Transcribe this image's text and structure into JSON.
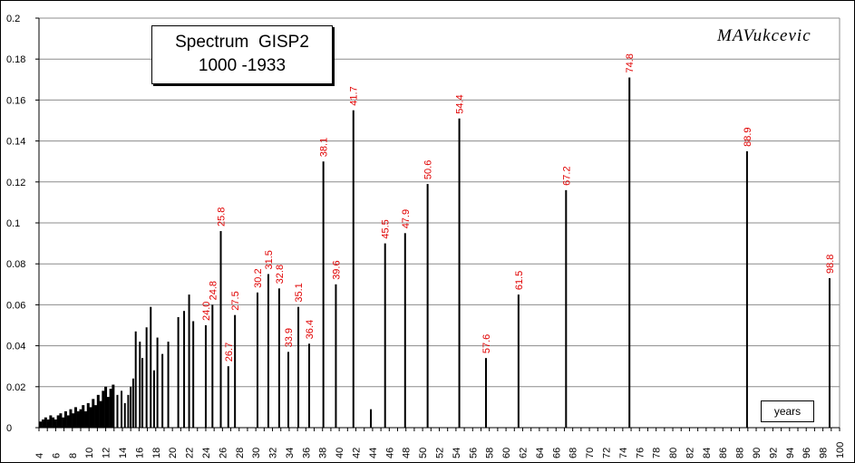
{
  "title_line1": "Spectrum  GISP2",
  "title_line2": "1000 -1933",
  "author": "MAVukcevic",
  "x_legend": "years",
  "chart_data": {
    "type": "bar",
    "xlabel": "years",
    "ylabel": "",
    "xlim": [
      4,
      100
    ],
    "ylim": [
      0,
      0.2
    ],
    "y_ticks": [
      "0",
      "0.02",
      "0.04",
      "0.06",
      "0.08",
      "0.1",
      "0.12",
      "0.14",
      "0.16",
      "0.18",
      "0.2"
    ],
    "x_ticks": [
      "4",
      "6",
      "8",
      "10",
      "12",
      "14",
      "16",
      "18",
      "20",
      "22",
      "24",
      "26",
      "28",
      "30",
      "32",
      "34",
      "36",
      "38",
      "40",
      "42",
      "44",
      "46",
      "48",
      "50",
      "52",
      "54",
      "56",
      "58",
      "60",
      "62",
      "64",
      "66",
      "68",
      "70",
      "72",
      "74",
      "76",
      "78",
      "80",
      "82",
      "84",
      "86",
      "88",
      "90",
      "92",
      "94",
      "96",
      "98",
      "100"
    ],
    "grid": "horizontal",
    "labeled_peaks": [
      {
        "x": 24.0,
        "y": 0.05,
        "label": "24.0"
      },
      {
        "x": 24.8,
        "y": 0.06,
        "label": "24.8"
      },
      {
        "x": 25.8,
        "y": 0.096,
        "label": "25.8"
      },
      {
        "x": 26.7,
        "y": 0.03,
        "label": "26.7"
      },
      {
        "x": 27.5,
        "y": 0.055,
        "label": "27.5"
      },
      {
        "x": 30.2,
        "y": 0.066,
        "label": "30.2"
      },
      {
        "x": 31.5,
        "y": 0.075,
        "label": "31.5"
      },
      {
        "x": 32.8,
        "y": 0.068,
        "label": "32.8"
      },
      {
        "x": 33.9,
        "y": 0.037,
        "label": "33.9"
      },
      {
        "x": 35.1,
        "y": 0.059,
        "label": "35.1"
      },
      {
        "x": 36.4,
        "y": 0.041,
        "label": "36.4"
      },
      {
        "x": 38.1,
        "y": 0.13,
        "label": "38.1"
      },
      {
        "x": 39.6,
        "y": 0.07,
        "label": "39.6"
      },
      {
        "x": 41.7,
        "y": 0.155,
        "label": "41.7"
      },
      {
        "x": 45.5,
        "y": 0.09,
        "label": "45.5"
      },
      {
        "x": 47.9,
        "y": 0.095,
        "label": "47.9"
      },
      {
        "x": 50.6,
        "y": 0.119,
        "label": "50.6"
      },
      {
        "x": 54.4,
        "y": 0.151,
        "label": "54.4"
      },
      {
        "x": 57.6,
        "y": 0.034,
        "label": "57.6"
      },
      {
        "x": 61.5,
        "y": 0.065,
        "label": "61.5"
      },
      {
        "x": 67.2,
        "y": 0.116,
        "label": "67.2"
      },
      {
        "x": 74.8,
        "y": 0.171,
        "label": "74.8"
      },
      {
        "x": 88.9,
        "y": 0.135,
        "label": "88.9"
      },
      {
        "x": 98.8,
        "y": 0.073,
        "label": "98.8"
      }
    ],
    "unlabeled_peaks": [
      {
        "x": 13.4,
        "y": 0.016
      },
      {
        "x": 13.9,
        "y": 0.018
      },
      {
        "x": 14.3,
        "y": 0.012
      },
      {
        "x": 14.7,
        "y": 0.016
      },
      {
        "x": 15.0,
        "y": 0.02
      },
      {
        "x": 15.3,
        "y": 0.024
      },
      {
        "x": 15.6,
        "y": 0.047
      },
      {
        "x": 16.1,
        "y": 0.042
      },
      {
        "x": 16.4,
        "y": 0.034
      },
      {
        "x": 16.9,
        "y": 0.049
      },
      {
        "x": 17.4,
        "y": 0.059
      },
      {
        "x": 17.8,
        "y": 0.028
      },
      {
        "x": 18.2,
        "y": 0.044
      },
      {
        "x": 18.8,
        "y": 0.036
      },
      {
        "x": 19.5,
        "y": 0.042
      },
      {
        "x": 20.7,
        "y": 0.054
      },
      {
        "x": 21.4,
        "y": 0.057
      },
      {
        "x": 22.0,
        "y": 0.065
      },
      {
        "x": 22.5,
        "y": 0.052
      },
      {
        "x": 43.8,
        "y": 0.009
      }
    ],
    "dense_region": {
      "x": [
        4.2,
        4.5,
        4.8,
        5.1,
        5.4,
        5.7,
        6.0,
        6.3,
        6.6,
        6.9,
        7.2,
        7.5,
        7.8,
        8.1,
        8.4,
        8.7,
        9.0,
        9.3,
        9.6,
        9.9,
        10.2,
        10.5,
        10.8,
        11.1,
        11.4,
        11.7,
        12.0,
        12.3,
        12.6,
        12.9
      ],
      "values": [
        0.003,
        0.004,
        0.005,
        0.004,
        0.006,
        0.005,
        0.004,
        0.006,
        0.007,
        0.005,
        0.008,
        0.006,
        0.009,
        0.007,
        0.01,
        0.008,
        0.009,
        0.011,
        0.008,
        0.012,
        0.01,
        0.014,
        0.011,
        0.016,
        0.013,
        0.018,
        0.02,
        0.015,
        0.019,
        0.021
      ]
    }
  }
}
